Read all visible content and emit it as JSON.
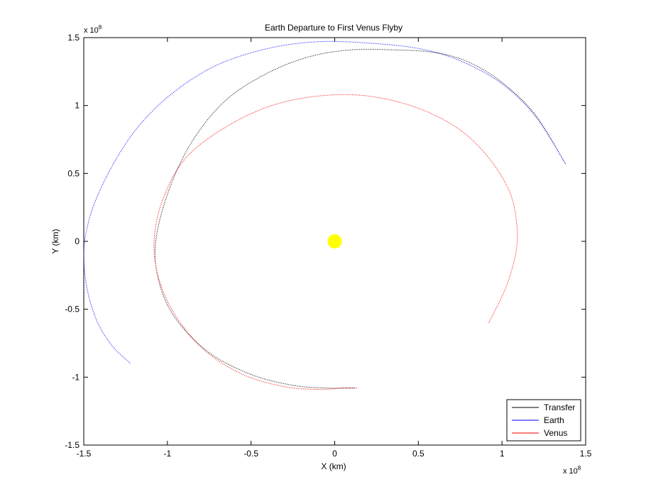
{
  "chart_data": {
    "type": "line",
    "title": "Earth Departure to First Venus Flyby",
    "xlabel": "X (km)",
    "ylabel": "Y (km)",
    "xlim": [
      -1.5,
      1.5
    ],
    "ylim": [
      -1.5,
      1.5
    ],
    "axis_multiplier": "x 10",
    "axis_exponent": "8",
    "x_ticks": [
      -1.5,
      -1,
      -0.5,
      0,
      0.5,
      1,
      1.5
    ],
    "y_ticks": [
      -1.5,
      -1,
      -0.5,
      0,
      0.5,
      1,
      1.5
    ],
    "x_tick_labels": [
      "-1.5",
      "-1",
      "-0.5",
      "0",
      "0.5",
      "1",
      "1.5"
    ],
    "y_tick_labels": [
      "-1.5",
      "-1",
      "-0.5",
      "0",
      "0.5",
      "1",
      "1.5"
    ],
    "grid": false,
    "legend_position": "bottom-right",
    "line_style": "dotted",
    "series": [
      {
        "name": "Transfer",
        "color": "#000000",
        "x": [
          1.38,
          1.2,
          1.0,
          0.8,
          0.6,
          0.35,
          0.1,
          -0.15,
          -0.4,
          -0.65,
          -0.85,
          -0.99,
          -1.07,
          -1.05,
          -0.95,
          -0.75,
          -0.5,
          -0.25,
          -0.05,
          0.12
        ],
        "y": [
          0.57,
          0.93,
          1.17,
          1.32,
          1.39,
          1.41,
          1.41,
          1.36,
          1.24,
          1.04,
          0.74,
          0.38,
          0.0,
          -0.3,
          -0.57,
          -0.82,
          -0.98,
          -1.06,
          -1.08,
          -1.08
        ]
      },
      {
        "name": "Earth",
        "color": "#0000ff",
        "x": [
          1.38,
          1.2,
          1.0,
          0.75,
          0.5,
          0.2,
          -0.1,
          -0.4,
          -0.7,
          -0.95,
          -1.15,
          -1.3,
          -1.42,
          -1.48,
          -1.5,
          -1.48,
          -1.42,
          -1.33,
          -1.22
        ],
        "y": [
          0.57,
          0.92,
          1.16,
          1.33,
          1.42,
          1.46,
          1.47,
          1.42,
          1.3,
          1.11,
          0.88,
          0.62,
          0.33,
          0.1,
          -0.1,
          -0.35,
          -0.59,
          -0.77,
          -0.9
        ]
      },
      {
        "name": "Venus",
        "color": "#ff0000",
        "x": [
          0.92,
          1.02,
          1.08,
          1.09,
          1.05,
          0.93,
          0.75,
          0.5,
          0.2,
          -0.1,
          -0.4,
          -0.68,
          -0.9,
          -1.03,
          -1.08,
          -1.05,
          -0.95,
          -0.78,
          -0.55,
          -0.3,
          -0.1,
          0.05,
          0.14
        ],
        "y": [
          -0.6,
          -0.35,
          -0.1,
          0.1,
          0.35,
          0.6,
          0.82,
          0.98,
          1.07,
          1.07,
          0.99,
          0.82,
          0.6,
          0.3,
          0.0,
          -0.28,
          -0.55,
          -0.8,
          -0.98,
          -1.07,
          -1.09,
          -1.08,
          -1.08
        ]
      }
    ],
    "markers": [
      {
        "name": "Sun",
        "x": 0,
        "y": 0,
        "color": "#ffff00"
      }
    ]
  }
}
